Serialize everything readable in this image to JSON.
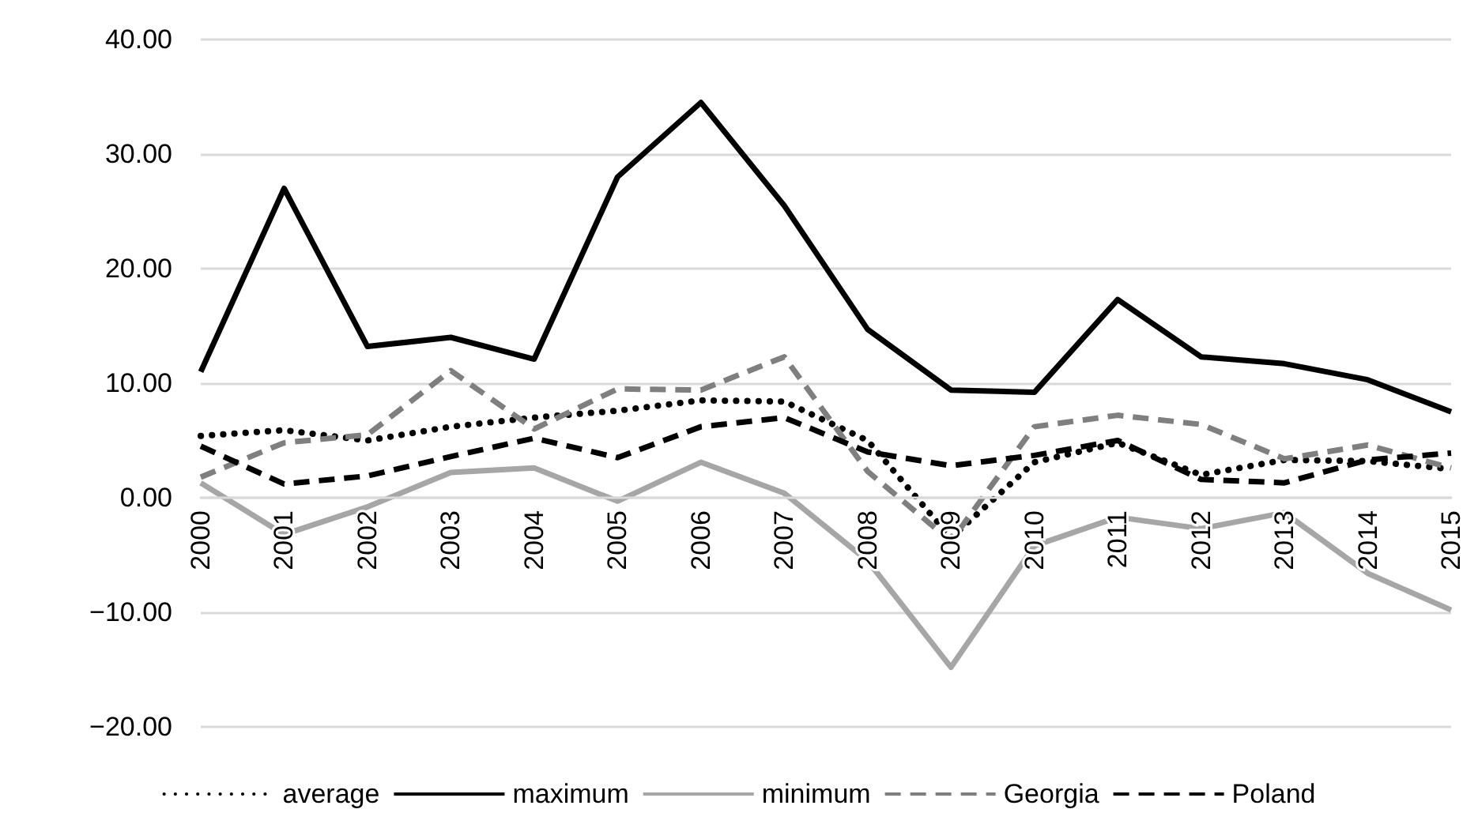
{
  "chart_data": {
    "type": "line",
    "categories": [
      "2000",
      "2001",
      "2002",
      "2003",
      "2004",
      "2005",
      "2006",
      "2007",
      "2008",
      "2009",
      "2010",
      "2011",
      "2012",
      "2013",
      "2014",
      "2015"
    ],
    "ylim": [
      -20,
      40
    ],
    "yticks": [
      {
        "value": -20,
        "label": "−20.00"
      },
      {
        "value": -10,
        "label": "−10.00"
      },
      {
        "value": 0,
        "label": "0.00"
      },
      {
        "value": 10,
        "label": "10.00"
      },
      {
        "value": 20,
        "label": "20.00"
      },
      {
        "value": 30,
        "label": "30.00"
      },
      {
        "value": 40,
        "label": "40.00"
      }
    ],
    "grid": "y",
    "legend": "bottom",
    "marker": "none",
    "series": [
      {
        "name": "average",
        "color": "#000000",
        "line_style": "dotted",
        "values": [
          5.4,
          5.9,
          5.0,
          6.2,
          7.0,
          7.6,
          8.5,
          8.4,
          5.0,
          -3.5,
          3.1,
          4.8,
          2.0,
          3.3,
          3.2,
          2.5
        ]
      },
      {
        "name": "maximum",
        "color": "#000000",
        "line_style": "solid",
        "values": [
          11,
          27,
          13.2,
          14,
          12.1,
          28,
          34.5,
          25.5,
          14.7,
          9.4,
          9.2,
          17.3,
          12.3,
          11.7,
          10.3,
          7.5
        ]
      },
      {
        "name": "minimum",
        "color": "#a6a6a6",
        "line_style": "solid",
        "values": [
          1.3,
          -3.2,
          -0.8,
          2.2,
          2.6,
          -0.3,
          3.1,
          0.4,
          -5.5,
          -14.8,
          -4.2,
          -1.7,
          -2.7,
          -1.3,
          -6.6,
          -9.8
        ]
      },
      {
        "name": "Georgia",
        "color": "#7f7f7f",
        "line_style": "dashed",
        "values": [
          1.8,
          4.8,
          5.5,
          11.1,
          6.0,
          9.5,
          9.4,
          12.3,
          2.3,
          -3.8,
          6.2,
          7.2,
          6.4,
          3.4,
          4.6,
          2.6
        ]
      },
      {
        "name": "Poland",
        "color": "#000000",
        "line_style": "dashed",
        "values": [
          4.5,
          1.2,
          1.9,
          3.6,
          5.2,
          3.5,
          6.2,
          7.0,
          4.0,
          2.8,
          3.7,
          5.0,
          1.6,
          1.3,
          3.3,
          3.9
        ]
      }
    ]
  }
}
